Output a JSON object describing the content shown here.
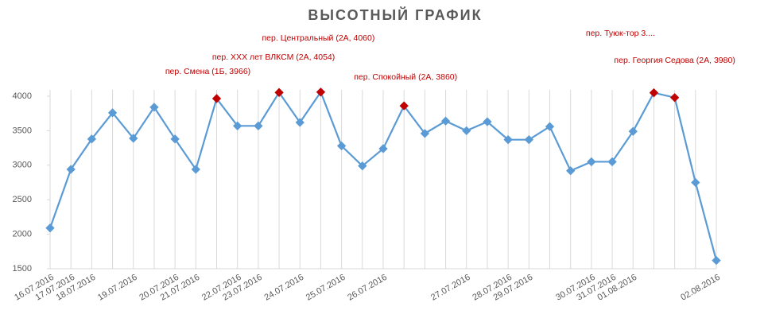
{
  "chart_data": {
    "type": "line",
    "title": "ВЫСОТНЫЙ ГРАФИК",
    "categories": [
      "16.07.2016",
      "17.07.2016",
      "18.07.2016",
      null,
      "19.07.2016",
      null,
      "20.07.2016",
      "21.07.2016",
      null,
      "22.07.2016",
      "23.07.2016",
      null,
      "24.07.2016",
      null,
      "25.07.2016",
      null,
      "26.07.2016",
      null,
      null,
      null,
      "27.07.2016",
      null,
      "28.07.2016",
      "29.07.2016",
      null,
      null,
      "30.07.2016",
      "31.07.2016",
      "01.08.2016",
      null,
      null,
      null,
      "02.08.2016"
    ],
    "series": [
      {
        "color": "#5b9bd5",
        "values": [
          2090,
          2940,
          3380,
          3760,
          3390,
          3840,
          3380,
          2940,
          3966,
          3570,
          3570,
          4054,
          3620,
          4060,
          3280,
          2990,
          3240,
          3860,
          3460,
          3640,
          3500,
          3630,
          3370,
          3370,
          3560,
          2920,
          3050,
          3050,
          3490,
          4050,
          3980,
          2750,
          1620
        ],
        "point_colors": [
          "#5b9bd5",
          "#5b9bd5",
          "#5b9bd5",
          "#5b9bd5",
          "#5b9bd5",
          "#5b9bd5",
          "#5b9bd5",
          "#5b9bd5",
          "#c00000",
          "#5b9bd5",
          "#5b9bd5",
          "#c00000",
          "#5b9bd5",
          "#c00000",
          "#5b9bd5",
          "#5b9bd5",
          "#5b9bd5",
          "#c00000",
          "#5b9bd5",
          "#5b9bd5",
          "#5b9bd5",
          "#5b9bd5",
          "#5b9bd5",
          "#5b9bd5",
          "#5b9bd5",
          "#5b9bd5",
          "#5b9bd5",
          "#5b9bd5",
          "#5b9bd5",
          "#c00000",
          "#c00000",
          "#5b9bd5",
          "#5b9bd5"
        ],
        "value_labels": [
          null,
          null,
          null,
          null,
          null,
          null,
          null,
          null,
          "пер. Смена (1Б, 3966)",
          null,
          null,
          "пер. ХХХ лет ВЛКСМ (2А, 4054)",
          null,
          "пер. Центральный (2А, 4060)",
          null,
          null,
          null,
          "пер. Спокойный (2А, 3860)",
          null,
          null,
          null,
          null,
          null,
          null,
          null,
          null,
          null,
          null,
          null,
          "пер. Туюк-тор 3....",
          "пер. Георгия Седова (2А, 3980)",
          null,
          null
        ]
      }
    ],
    "ylim": [
      1500,
      4000
    ],
    "yticks": [
      1500,
      2000,
      2500,
      3000,
      3500,
      4000
    ],
    "grid": true
  }
}
